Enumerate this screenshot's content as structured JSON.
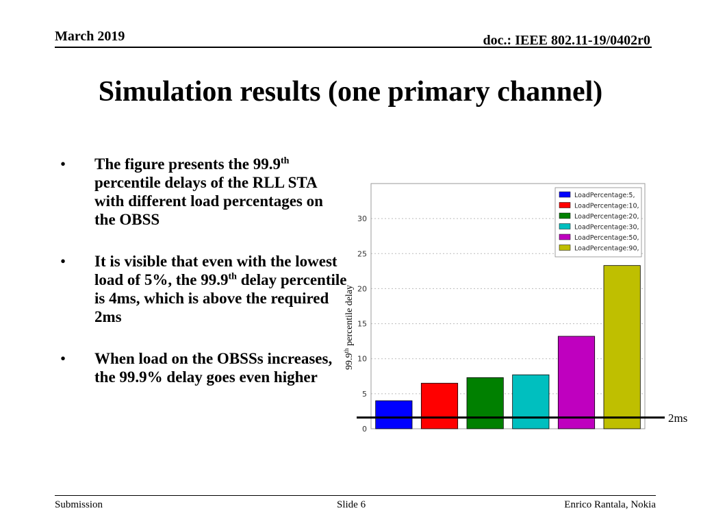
{
  "header": {
    "date": "March 2019",
    "doc": "doc.: IEEE 802.11-19/0402r0"
  },
  "title": "Simulation results (one primary channel)",
  "bullets": [
    {
      "marker": "•",
      "before": "The figure presents the 99.9",
      "sup": "th",
      "after": " percentile delays of the RLL STA with different load percentages on the OBSS"
    },
    {
      "marker": "•",
      "before": "It is visible that even with the lowest load of 5%, the 99.9",
      "sup": "th",
      "after": " delay percentile is 4ms, which is above the required 2ms"
    },
    {
      "marker": "•",
      "before": "When load on the OBSSs increases, the 99.9% delay goes even higher",
      "sup": "",
      "after": ""
    }
  ],
  "chart_data": {
    "type": "bar",
    "ylabel_main": "99.9",
    "ylabel_sup": "th",
    "ylabel_rest": " percentile delay",
    "ylim": [
      0,
      35
    ],
    "yticks": [
      "0",
      "5",
      "10",
      "15",
      "20",
      "25",
      "30"
    ],
    "grid": true,
    "legend_position": "top-right",
    "series": [
      {
        "name": "LoadPercentage:5,",
        "value": 4.0,
        "color": "#0000ff"
      },
      {
        "name": "LoadPercentage:10,",
        "value": 6.5,
        "color": "#ff0000"
      },
      {
        "name": "LoadPercentage:20,",
        "value": 7.3,
        "color": "#008000"
      },
      {
        "name": "LoadPercentage:30,",
        "value": 7.7,
        "color": "#00bfbf"
      },
      {
        "name": "LoadPercentage:50,",
        "value": 13.2,
        "color": "#bf00bf"
      },
      {
        "name": "LoadPercentage:90,",
        "value": 23.3,
        "color": "#bfbf00"
      }
    ],
    "reference_line": {
      "value": 1.6,
      "label": "2ms"
    }
  },
  "footer": {
    "left": "Submission",
    "center": "Slide 6",
    "right": "Enrico Rantala, Nokia"
  }
}
